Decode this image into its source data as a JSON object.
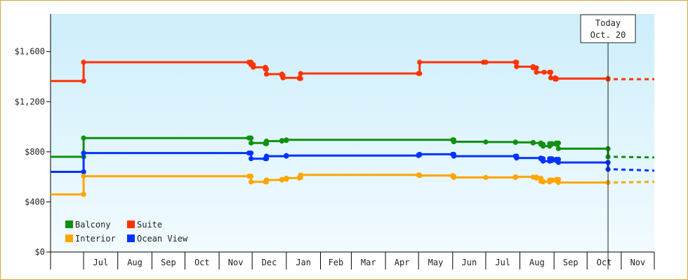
{
  "chart_data": {
    "type": "line",
    "title": "",
    "xlabel": "",
    "ylabel": "",
    "ylim": [
      0,
      1900
    ],
    "y_ticks": [
      0,
      400,
      800,
      1200,
      1600
    ],
    "y_tick_labels": [
      "$0",
      "$400",
      "$800",
      "$1,200",
      "$1,600"
    ],
    "x_range": [
      "2024-06-01",
      "2025-12-01"
    ],
    "month_ticks": [
      {
        "label": "Jul",
        "start": "2024-07-01",
        "end": "2024-08-01"
      },
      {
        "label": "Aug",
        "start": "2024-08-01",
        "end": "2024-09-01"
      },
      {
        "label": "Sep",
        "start": "2024-09-01",
        "end": "2024-10-01"
      },
      {
        "label": "Oct",
        "start": "2024-10-01",
        "end": "2024-11-01"
      },
      {
        "label": "Nov",
        "start": "2024-11-01",
        "end": "2024-12-01"
      },
      {
        "label": "Dec",
        "start": "2024-12-01",
        "end": "2025-01-01"
      },
      {
        "label": "Jan",
        "start": "2025-01-01",
        "end": "2025-02-01"
      },
      {
        "label": "Feb",
        "start": "2025-02-01",
        "end": "2025-03-01"
      },
      {
        "label": "Mar",
        "start": "2025-03-01",
        "end": "2025-04-01"
      },
      {
        "label": "Apr",
        "start": "2025-04-01",
        "end": "2025-05-01"
      },
      {
        "label": "May",
        "start": "2025-05-01",
        "end": "2025-06-01"
      },
      {
        "label": "Jun",
        "start": "2025-06-01",
        "end": "2025-07-01"
      },
      {
        "label": "Jul",
        "start": "2025-07-01",
        "end": "2025-08-01"
      },
      {
        "label": "Aug",
        "start": "2025-08-01",
        "end": "2025-09-01"
      },
      {
        "label": "Sep",
        "start": "2025-09-01",
        "end": "2025-10-01"
      },
      {
        "label": "Oct",
        "start": "2025-10-01",
        "end": "2025-11-01"
      },
      {
        "label": "Nov",
        "start": "2025-11-01",
        "end": "2025-12-01"
      }
    ],
    "today": {
      "line1": "Today",
      "line2": "Oct. 20",
      "date": "2025-10-20"
    },
    "legend_position": "bottom-left",
    "grid": false,
    "series": [
      {
        "name": "Suite",
        "color": "#ff3300",
        "points": [
          [
            "2024-06-01",
            1365
          ],
          [
            "2024-07-01",
            1365
          ],
          [
            "2024-07-01",
            1515
          ],
          [
            "2024-11-28",
            1515
          ],
          [
            "2024-11-30",
            1495
          ],
          [
            "2024-12-02",
            1475
          ],
          [
            "2024-12-13",
            1460
          ],
          [
            "2024-12-14",
            1420
          ],
          [
            "2024-12-28",
            1410
          ],
          [
            "2024-12-29",
            1390
          ],
          [
            "2025-01-13",
            1385
          ],
          [
            "2025-01-14",
            1425
          ],
          [
            "2025-05-01",
            1425
          ],
          [
            "2025-05-02",
            1515
          ],
          [
            "2025-06-29",
            1515
          ],
          [
            "2025-07-01",
            1515
          ],
          [
            "2025-07-28",
            1515
          ],
          [
            "2025-07-29",
            1480
          ],
          [
            "2025-08-13",
            1470
          ],
          [
            "2025-08-16",
            1435
          ],
          [
            "2025-08-23",
            1435
          ],
          [
            "2025-08-28",
            1435
          ],
          [
            "2025-08-29",
            1390
          ],
          [
            "2025-09-02",
            1380
          ],
          [
            "2025-09-03",
            1385
          ],
          [
            "2025-10-20",
            1380
          ]
        ],
        "forecast": [
          [
            "2025-10-20",
            1380
          ],
          [
            "2025-12-01",
            1380
          ]
        ]
      },
      {
        "name": "Balcony",
        "color": "#109010",
        "points": [
          [
            "2024-06-01",
            760
          ],
          [
            "2024-07-01",
            760
          ],
          [
            "2024-07-01",
            910
          ],
          [
            "2024-11-28",
            910
          ],
          [
            "2024-11-30",
            870
          ],
          [
            "2024-12-13",
            865
          ],
          [
            "2024-12-14",
            885
          ],
          [
            "2024-12-28",
            890
          ],
          [
            "2025-01-01",
            895
          ],
          [
            "2025-06-01",
            895
          ],
          [
            "2025-06-02",
            880
          ],
          [
            "2025-07-01",
            878
          ],
          [
            "2025-07-28",
            875
          ],
          [
            "2025-08-13",
            870
          ],
          [
            "2025-08-20",
            860
          ],
          [
            "2025-08-22",
            845
          ],
          [
            "2025-08-28",
            865
          ],
          [
            "2025-08-30",
            860
          ],
          [
            "2025-09-03",
            870
          ],
          [
            "2025-09-05",
            825
          ],
          [
            "2025-10-20",
            825
          ],
          [
            "2025-10-20",
            760
          ]
        ],
        "forecast": [
          [
            "2025-10-20",
            760
          ],
          [
            "2025-12-01",
            755
          ]
        ]
      },
      {
        "name": "Ocean View",
        "color": "#0033ff",
        "points": [
          [
            "2024-06-01",
            640
          ],
          [
            "2024-07-01",
            640
          ],
          [
            "2024-07-01",
            790
          ],
          [
            "2024-11-28",
            790
          ],
          [
            "2024-11-30",
            745
          ],
          [
            "2024-12-13",
            745
          ],
          [
            "2024-12-14",
            765
          ],
          [
            "2025-01-01",
            770
          ],
          [
            "2025-05-01",
            775
          ],
          [
            "2025-05-02",
            780
          ],
          [
            "2025-06-01",
            780
          ],
          [
            "2025-06-02",
            765
          ],
          [
            "2025-07-28",
            765
          ],
          [
            "2025-07-29",
            750
          ],
          [
            "2025-08-20",
            745
          ],
          [
            "2025-08-22",
            725
          ],
          [
            "2025-08-28",
            745
          ],
          [
            "2025-08-30",
            730
          ],
          [
            "2025-09-03",
            740
          ],
          [
            "2025-09-05",
            715
          ],
          [
            "2025-10-20",
            715
          ],
          [
            "2025-10-20",
            660
          ]
        ],
        "forecast": [
          [
            "2025-10-20",
            660
          ],
          [
            "2025-12-01",
            650
          ]
        ]
      },
      {
        "name": "Interior",
        "color": "#ffa500",
        "points": [
          [
            "2024-06-01",
            460
          ],
          [
            "2024-07-01",
            460
          ],
          [
            "2024-07-01",
            605
          ],
          [
            "2024-11-28",
            605
          ],
          [
            "2024-11-30",
            560
          ],
          [
            "2024-12-13",
            560
          ],
          [
            "2024-12-14",
            575
          ],
          [
            "2024-12-28",
            580
          ],
          [
            "2025-01-01",
            590
          ],
          [
            "2025-01-13",
            595
          ],
          [
            "2025-01-14",
            615
          ],
          [
            "2025-05-01",
            615
          ],
          [
            "2025-05-02",
            610
          ],
          [
            "2025-06-01",
            605
          ],
          [
            "2025-06-02",
            595
          ],
          [
            "2025-07-01",
            595
          ],
          [
            "2025-07-28",
            600
          ],
          [
            "2025-08-13",
            598
          ],
          [
            "2025-08-16",
            590
          ],
          [
            "2025-08-20",
            565
          ],
          [
            "2025-08-22",
            560
          ],
          [
            "2025-08-28",
            575
          ],
          [
            "2025-08-30",
            570
          ],
          [
            "2025-09-03",
            580
          ],
          [
            "2025-09-05",
            555
          ],
          [
            "2025-10-20",
            555
          ]
        ],
        "forecast": [
          [
            "2025-10-20",
            555
          ],
          [
            "2025-12-01",
            560
          ]
        ]
      }
    ],
    "legend": [
      {
        "label": "Balcony",
        "color": "#109010"
      },
      {
        "label": "Suite",
        "color": "#ff3300"
      },
      {
        "label": "Interior",
        "color": "#ffa500"
      },
      {
        "label": "Ocean View",
        "color": "#0033ff"
      }
    ]
  }
}
